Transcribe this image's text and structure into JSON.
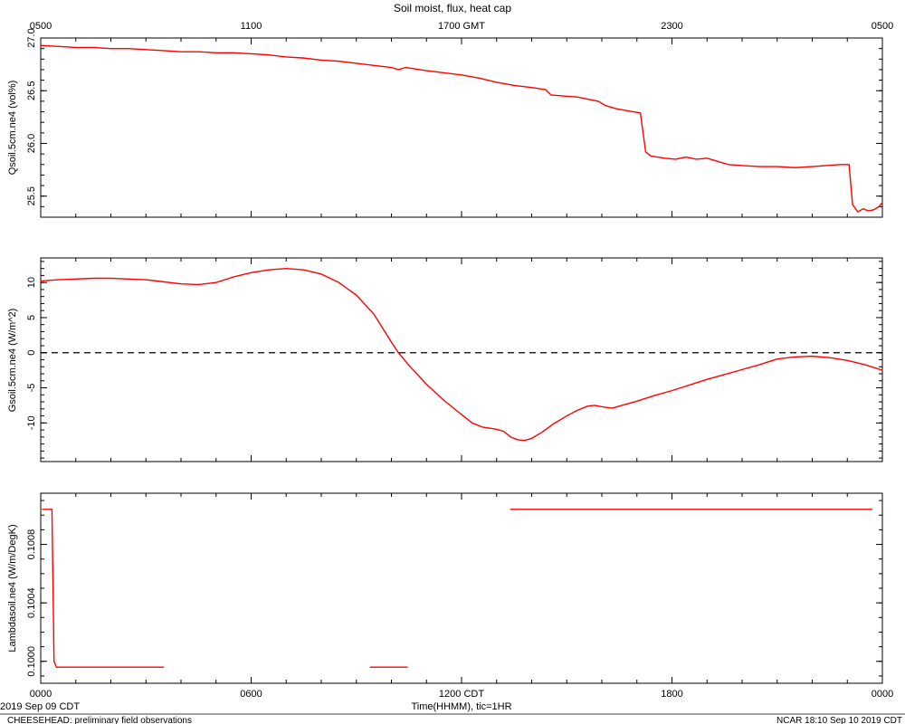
{
  "title": "Soil moist, flux, heat cap",
  "line_color": "#ff0000",
  "x_axis": {
    "label": "Time(HHMM), tic=1HR",
    "range_hours": [
      0,
      24
    ],
    "major_every_hours": 6,
    "minor_every_hours": 1,
    "tick_hours": [
      0,
      6,
      12,
      18,
      24
    ],
    "top_ticks": [
      "0500",
      "1100",
      "1700 GMT",
      "2300",
      "0500"
    ],
    "bottom_ticks": [
      "0000",
      "0600",
      "1200 CDT",
      "1800",
      "0000"
    ]
  },
  "footer": {
    "date_left": "2019 Sep 09 CDT",
    "note_left": "CHEESEHEAD: preliminary field observations",
    "stamp_right": "NCAR 18:10 Sep 10 2019 CDT"
  },
  "chart_data": [
    {
      "type": "line",
      "name": "soil-moisture",
      "ylabel": "Qsoil.5cm.ne4 (vol%)",
      "ylim": [
        25.3,
        27.0
      ],
      "yticks": [
        25.5,
        26.0,
        26.5,
        27.0
      ],
      "ytick_labels": [
        "25.5",
        "26.0",
        "26.5",
        "27.0"
      ],
      "yminor_step": 0.1,
      "x": [
        0,
        0.5,
        1,
        1.5,
        2,
        2.5,
        3,
        3.5,
        4,
        4.5,
        5,
        5.5,
        6,
        6.5,
        7,
        7.5,
        8,
        8.5,
        9,
        9.5,
        10,
        10.2,
        10.4,
        11,
        11.5,
        12,
        12.5,
        13,
        13.5,
        14,
        14.4,
        14.55,
        14.9,
        15.3,
        15.6,
        15.9,
        16.1,
        16.4,
        16.9,
        17.1,
        17.25,
        17.4,
        17.8,
        18.1,
        18.4,
        18.7,
        19,
        19.3,
        19.6,
        20,
        20.5,
        21,
        21.5,
        22,
        22.4,
        22.8,
        23.05,
        23.15,
        23.3,
        23.45,
        23.6,
        23.75,
        23.9,
        24
      ],
      "y": [
        26.93,
        26.92,
        26.91,
        26.91,
        26.9,
        26.9,
        26.89,
        26.88,
        26.87,
        26.87,
        26.86,
        26.86,
        26.85,
        26.84,
        26.82,
        26.81,
        26.79,
        26.78,
        26.76,
        26.74,
        26.72,
        26.7,
        26.72,
        26.69,
        26.67,
        26.65,
        26.62,
        26.58,
        26.55,
        26.53,
        26.51,
        26.46,
        26.45,
        26.44,
        26.42,
        26.4,
        26.36,
        26.33,
        26.3,
        26.29,
        25.92,
        25.88,
        25.86,
        25.85,
        25.87,
        25.85,
        25.86,
        25.83,
        25.8,
        25.79,
        25.78,
        25.78,
        25.77,
        25.78,
        25.79,
        25.8,
        25.8,
        25.42,
        25.35,
        25.38,
        25.36,
        25.37,
        25.4,
        25.44
      ]
    },
    {
      "type": "line",
      "name": "soil-heat-flux",
      "ylabel": "Gsoil.5cm.ne4 (W/m^2)",
      "ylim": [
        -15.5,
        13.5
      ],
      "yticks": [
        -10,
        -5,
        0,
        5,
        10
      ],
      "ytick_labels": [
        "-10",
        "-5",
        "0",
        "5",
        "10"
      ],
      "yminor_step": 1,
      "zero_line_dashed": true,
      "x": [
        0,
        0.5,
        1,
        1.5,
        2,
        2.5,
        3,
        3.5,
        4,
        4.5,
        5,
        5.5,
        6,
        6.5,
        7,
        7.5,
        8,
        8.5,
        9,
        9.5,
        10,
        10.2,
        10.5,
        11,
        11.5,
        12,
        12.3,
        12.6,
        13,
        13.2,
        13.4,
        13.6,
        13.8,
        14,
        14.3,
        14.6,
        15,
        15.3,
        15.6,
        15.8,
        16,
        16.3,
        16.5,
        17,
        17.5,
        18,
        18.5,
        19,
        19.5,
        20,
        20.5,
        21,
        21.5,
        22,
        22.5,
        23,
        23.5,
        24
      ],
      "y": [
        10.2,
        10.4,
        10.5,
        10.6,
        10.6,
        10.5,
        10.4,
        10.1,
        9.8,
        9.7,
        10.0,
        10.8,
        11.4,
        11.8,
        12.0,
        11.8,
        11.2,
        10.0,
        8.2,
        5.5,
        1.5,
        0.0,
        -1.8,
        -4.5,
        -6.8,
        -8.8,
        -10.0,
        -10.6,
        -10.9,
        -11.2,
        -12.0,
        -12.4,
        -12.5,
        -12.2,
        -11.3,
        -10.2,
        -9.0,
        -8.2,
        -7.6,
        -7.5,
        -7.7,
        -7.9,
        -7.6,
        -6.9,
        -6.1,
        -5.4,
        -4.6,
        -3.8,
        -3.1,
        -2.4,
        -1.7,
        -0.9,
        -0.6,
        -0.5,
        -0.7,
        -1.1,
        -1.7,
        -2.5
      ]
    },
    {
      "type": "line",
      "name": "soil-conductivity",
      "ylabel": "Lambdasoil.ne4 (W/m/DegK)",
      "ylim": [
        0.09985,
        0.10115
      ],
      "yticks": [
        0.1,
        0.1004,
        0.1008
      ],
      "ytick_labels": [
        "0.1000",
        "0.1004",
        "0.1008"
      ],
      "yminor_step": 0.0001,
      "segments": [
        {
          "x": [
            0.05,
            0.32,
            0.38,
            0.45,
            3.5
          ],
          "y": [
            0.10104,
            0.10104,
            0.1,
            0.09996,
            0.09996
          ]
        },
        {
          "x": [
            9.4,
            10.45
          ],
          "y": [
            0.09996,
            0.09996
          ]
        },
        {
          "x": [
            13.4,
            23.7
          ],
          "y": [
            0.10104,
            0.10104
          ]
        }
      ]
    }
  ]
}
